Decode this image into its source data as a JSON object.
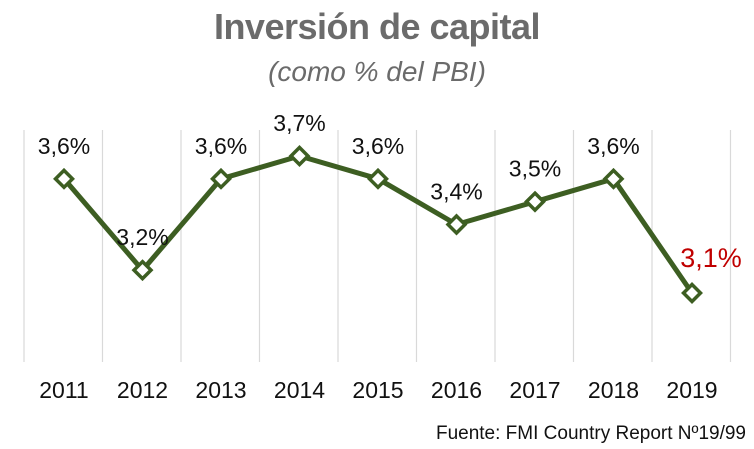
{
  "chart_data": {
    "type": "line",
    "title": "Inversión de capital",
    "subtitle": "(como % del PBI)",
    "categories": [
      "2011",
      "2012",
      "2013",
      "2014",
      "2015",
      "2016",
      "2017",
      "2018",
      "2019"
    ],
    "values": [
      3.6,
      3.2,
      3.6,
      3.7,
      3.6,
      3.4,
      3.5,
      3.6,
      3.1
    ],
    "data_labels": [
      "3,6%",
      "3,2%",
      "3,6%",
      "3,7%",
      "3,6%",
      "3,4%",
      "3,5%",
      "3,6%",
      "3,1%"
    ],
    "highlight_index": 8,
    "ylim": [
      2.8,
      3.8
    ],
    "xlabel": "",
    "ylabel": "",
    "grid": "vertical",
    "series_color": "#3d5e22",
    "highlight_color": "#c00000",
    "grid_color": "#d9d9d9",
    "title_color": "#6b6b6b"
  },
  "source_text": "Fuente: FMI Country Report Nº19/99"
}
